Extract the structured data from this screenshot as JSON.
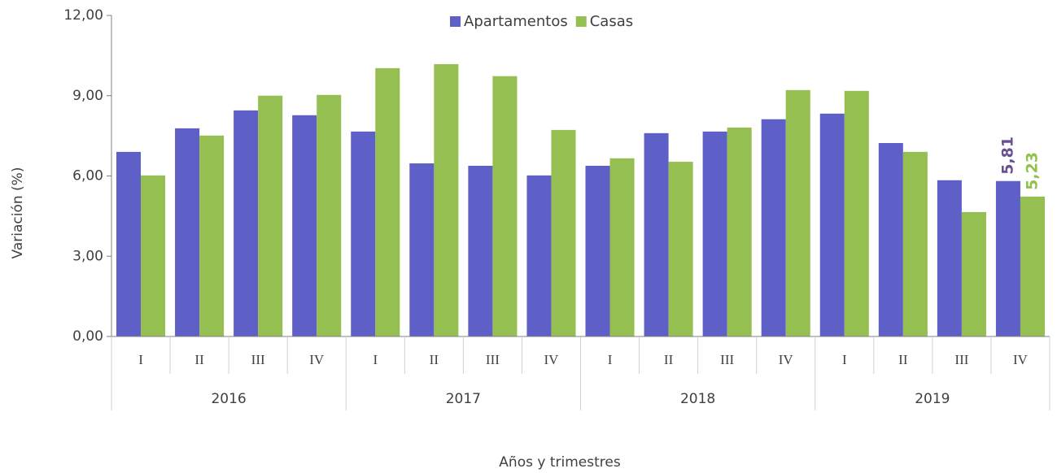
{
  "chart_data": {
    "type": "bar",
    "categories": [
      "I",
      "II",
      "III",
      "IV",
      "I",
      "II",
      "III",
      "IV",
      "I",
      "II",
      "III",
      "IV",
      "I",
      "II",
      "III",
      "IV"
    ],
    "category_groups": [
      "2016",
      "2017",
      "2018",
      "2019"
    ],
    "series": [
      {
        "name": "Apartamentos",
        "color": "#5f5fc8",
        "label_color": "#6a4f94",
        "values": [
          6.9,
          7.78,
          8.45,
          8.27,
          7.66,
          6.47,
          6.38,
          6.02,
          6.38,
          7.6,
          7.66,
          8.12,
          8.33,
          7.23,
          5.84,
          5.81
        ],
        "value_labels": [
          null,
          null,
          null,
          null,
          null,
          null,
          null,
          null,
          null,
          null,
          null,
          null,
          null,
          null,
          null,
          "5,81"
        ]
      },
      {
        "name": "Casas",
        "color": "#95bf50",
        "label_color": "#8fc34a",
        "values": [
          6.02,
          7.51,
          9.0,
          9.03,
          10.03,
          10.18,
          9.73,
          7.72,
          6.66,
          6.53,
          7.81,
          9.21,
          9.18,
          6.9,
          4.65,
          5.23
        ],
        "value_labels": [
          null,
          null,
          null,
          null,
          null,
          null,
          null,
          null,
          null,
          null,
          null,
          null,
          null,
          null,
          null,
          "5,23"
        ]
      }
    ],
    "ylim": [
      0,
      12
    ],
    "yticks": [
      {
        "value": 0,
        "label": "0,00"
      },
      {
        "value": 3,
        "label": "3,00"
      },
      {
        "value": 6,
        "label": "6,00"
      },
      {
        "value": 9,
        "label": "9,00"
      },
      {
        "value": 12,
        "label": "12,00"
      }
    ],
    "ylabel": "Variación (%)",
    "xlabel": "Años y trimestres",
    "legend": "top",
    "grid": false
  }
}
